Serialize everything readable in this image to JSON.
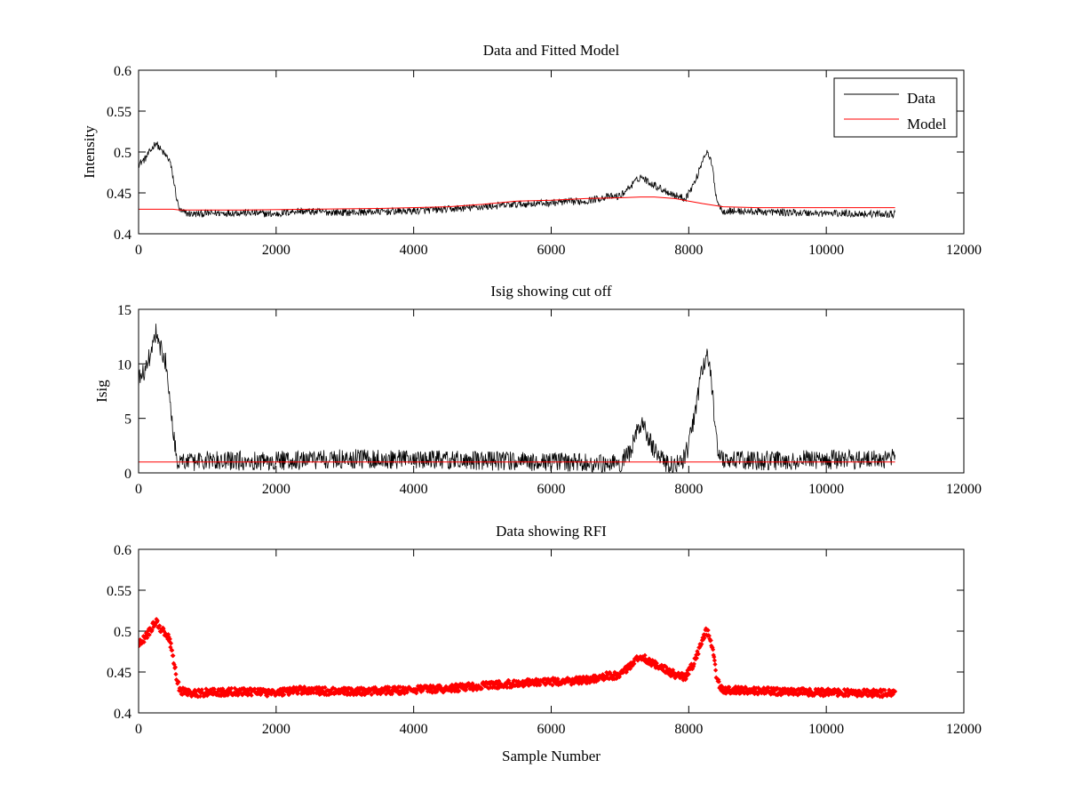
{
  "figure": {
    "background_color": "#ffffff"
  },
  "chart_data": [
    {
      "type": "line",
      "title": "Data and Fitted Model",
      "xlabel": "",
      "ylabel": "Intensity",
      "xlim": [
        0,
        12000
      ],
      "ylim": [
        0.4,
        0.6
      ],
      "x_ticks": [
        0,
        2000,
        4000,
        6000,
        8000,
        10000,
        12000
      ],
      "x_tick_labels": [
        "0",
        "2000",
        "4000",
        "6000",
        "8000",
        "10000",
        "12000"
      ],
      "y_ticks": [
        0.4,
        0.45,
        0.5,
        0.55,
        0.6
      ],
      "y_tick_labels": [
        "0.4",
        "0.45",
        "0.5",
        "0.55",
        "0.6"
      ],
      "grid": false,
      "legend": {
        "placement": "top-right",
        "entries": [
          "Data",
          "Model"
        ]
      },
      "series": [
        {
          "name": "Data",
          "color": "#000000",
          "style": "line",
          "x_range": [
            0,
            11000
          ],
          "noise": 0.0045,
          "envelope_x": [
            0,
            100,
            200,
            250,
            300,
            400,
            450,
            500,
            560,
            600,
            700,
            800,
            1000,
            1500,
            2000,
            2300,
            2500,
            3000,
            3500,
            4000,
            4500,
            5000,
            5500,
            6000,
            6500,
            6800,
            7000,
            7150,
            7300,
            7450,
            7600,
            7800,
            7950,
            8100,
            8200,
            8250,
            8300,
            8350,
            8400,
            8450,
            8500,
            9000,
            10000,
            11000
          ],
          "envelope_y": [
            0.485,
            0.492,
            0.505,
            0.512,
            0.505,
            0.495,
            0.49,
            0.47,
            0.44,
            0.428,
            0.425,
            0.424,
            0.425,
            0.426,
            0.424,
            0.428,
            0.427,
            0.426,
            0.427,
            0.428,
            0.43,
            0.433,
            0.436,
            0.438,
            0.44,
            0.445,
            0.446,
            0.458,
            0.47,
            0.462,
            0.455,
            0.447,
            0.443,
            0.465,
            0.49,
            0.5,
            0.495,
            0.478,
            0.445,
            0.433,
            0.428,
            0.427,
            0.425,
            0.424
          ]
        },
        {
          "name": "Model",
          "color": "#ff0000",
          "style": "line",
          "x": [
            0,
            500,
            600,
            1500,
            2500,
            3500,
            4500,
            5000,
            5500,
            6000,
            6500,
            7000,
            7300,
            7500,
            7800,
            8000,
            8200,
            8500,
            9000,
            10000,
            11000
          ],
          "y": [
            0.43,
            0.43,
            0.429,
            0.429,
            0.43,
            0.431,
            0.433,
            0.436,
            0.44,
            0.441,
            0.443,
            0.444,
            0.445,
            0.445,
            0.443,
            0.44,
            0.437,
            0.433,
            0.432,
            0.432,
            0.432
          ]
        }
      ]
    },
    {
      "type": "line",
      "title": "Isig showing cut off",
      "xlabel": "",
      "ylabel": "Isig",
      "xlim": [
        0,
        12000
      ],
      "ylim": [
        0,
        15
      ],
      "x_ticks": [
        0,
        2000,
        4000,
        6000,
        8000,
        10000,
        12000
      ],
      "x_tick_labels": [
        "0",
        "2000",
        "4000",
        "6000",
        "8000",
        "10000",
        "12000"
      ],
      "y_ticks": [
        0,
        5,
        10,
        15
      ],
      "y_tick_labels": [
        "0",
        "5",
        "10",
        "15"
      ],
      "grid": false,
      "series": [
        {
          "color": "#000000",
          "style": "line",
          "x_range": [
            0,
            11000
          ],
          "noise": 0.9,
          "floor": 0,
          "envelope_x": [
            0,
            100,
            200,
            260,
            320,
            400,
            450,
            500,
            560,
            600,
            1000,
            2000,
            2500,
            3000,
            4000,
            5000,
            6000,
            7000,
            7150,
            7250,
            7300,
            7400,
            7500,
            7700,
            7900,
            8000,
            8100,
            8200,
            8250,
            8300,
            8350,
            8400,
            8450,
            8600,
            10000,
            11000
          ],
          "envelope_y": [
            8.5,
            9.5,
            11.5,
            13.2,
            11.5,
            10,
            7.5,
            4,
            1.2,
            1.0,
            1.1,
            1.1,
            1.2,
            1.3,
            1.2,
            1.1,
            1.0,
            0.9,
            2.0,
            3.8,
            4.5,
            3.5,
            2.0,
            0.8,
            0.8,
            2.5,
            6.0,
            9.5,
            11,
            10,
            7,
            3,
            1.2,
            1.1,
            1.2,
            1.3
          ]
        },
        {
          "color": "#ff0000",
          "style": "line",
          "x": [
            0,
            11000
          ],
          "y": [
            1,
            1
          ]
        }
      ]
    },
    {
      "type": "scatter",
      "title": "Data showing RFI",
      "xlabel": "Sample Number",
      "ylabel": "",
      "xlim": [
        0,
        12000
      ],
      "ylim": [
        0.4,
        0.6
      ],
      "x_ticks": [
        0,
        2000,
        4000,
        6000,
        8000,
        10000,
        12000
      ],
      "x_tick_labels": [
        "0",
        "2000",
        "4000",
        "6000",
        "8000",
        "10000",
        "12000"
      ],
      "y_ticks": [
        0.4,
        0.45,
        0.5,
        0.55,
        0.6
      ],
      "y_tick_labels": [
        "0.4",
        "0.45",
        "0.5",
        "0.55",
        "0.6"
      ],
      "grid": false,
      "series": [
        {
          "color": "#ff0000",
          "style": "markers",
          "x_range": [
            0,
            11000
          ],
          "noise": 0.0045,
          "envelope_x": [
            0,
            100,
            200,
            250,
            300,
            400,
            450,
            500,
            560,
            600,
            700,
            800,
            1000,
            1500,
            2000,
            2300,
            2500,
            3000,
            3500,
            4000,
            4500,
            5000,
            5500,
            6000,
            6500,
            6800,
            7000,
            7150,
            7300,
            7450,
            7600,
            7800,
            7950,
            8100,
            8200,
            8250,
            8300,
            8350,
            8400,
            8450,
            8500,
            9000,
            10000,
            11000
          ],
          "envelope_y": [
            0.485,
            0.492,
            0.505,
            0.512,
            0.505,
            0.495,
            0.49,
            0.47,
            0.44,
            0.428,
            0.425,
            0.424,
            0.425,
            0.426,
            0.424,
            0.428,
            0.427,
            0.426,
            0.427,
            0.428,
            0.43,
            0.433,
            0.436,
            0.438,
            0.44,
            0.445,
            0.446,
            0.458,
            0.47,
            0.462,
            0.455,
            0.447,
            0.443,
            0.465,
            0.49,
            0.5,
            0.495,
            0.478,
            0.445,
            0.433,
            0.428,
            0.427,
            0.425,
            0.424
          ]
        }
      ]
    }
  ]
}
